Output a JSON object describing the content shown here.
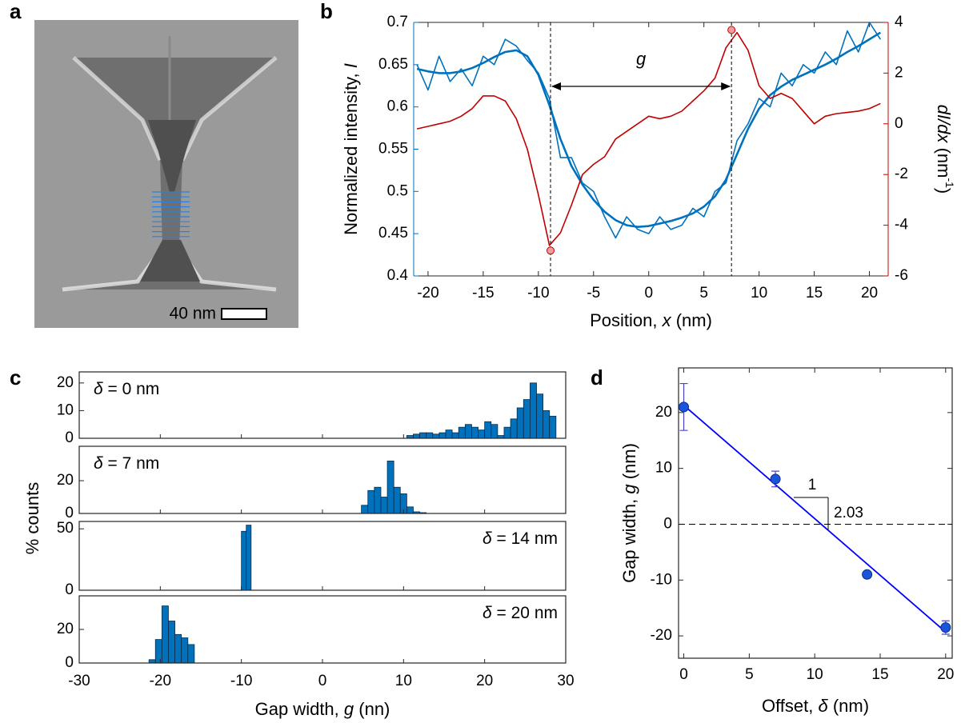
{
  "chart_data": [
    {
      "type": "image",
      "label": "a",
      "scale_bar_label": "40 nm"
    },
    {
      "type": "line",
      "label": "b",
      "x": [
        -21,
        -20,
        -19,
        -18,
        -17,
        -16,
        -15,
        -14,
        -13,
        -12,
        -11,
        -10,
        -9,
        -8,
        -7,
        -6,
        -5,
        -4,
        -3,
        -2,
        -1,
        0,
        1,
        2,
        3,
        4,
        5,
        6,
        7,
        8,
        9,
        10,
        11,
        12,
        13,
        14,
        15,
        16,
        17,
        18,
        19,
        20,
        21
      ],
      "series": [
        {
          "color": "#0072BD",
          "values": [
            0.65,
            0.62,
            0.66,
            0.63,
            0.645,
            0.625,
            0.66,
            0.65,
            0.68,
            0.672,
            0.655,
            0.64,
            0.61,
            0.54,
            0.54,
            0.51,
            0.5,
            0.47,
            0.445,
            0.47,
            0.455,
            0.45,
            0.47,
            0.455,
            0.46,
            0.48,
            0.47,
            0.5,
            0.51,
            0.56,
            0.58,
            0.61,
            0.6,
            0.64,
            0.625,
            0.65,
            0.64,
            0.665,
            0.65,
            0.69,
            0.665,
            0.7,
            0.68
          ]
        },
        {
          "color": "#0072BD",
          "values": [
            0.645,
            0.642,
            0.64,
            0.64,
            0.642,
            0.646,
            0.652,
            0.659,
            0.665,
            0.667,
            0.66,
            0.638,
            0.602,
            0.562,
            0.53,
            0.508,
            0.49,
            0.476,
            0.466,
            0.46,
            0.458,
            0.459,
            0.462,
            0.465,
            0.469,
            0.474,
            0.482,
            0.494,
            0.514,
            0.544,
            0.574,
            0.598,
            0.614,
            0.624,
            0.632,
            0.638,
            0.644,
            0.65,
            0.657,
            0.665,
            0.672,
            0.68,
            0.688
          ]
        },
        {
          "color": "#C00000",
          "axis": "y2",
          "values": [
            -0.2,
            -0.1,
            0.0,
            0.1,
            0.3,
            0.6,
            1.1,
            1.1,
            0.9,
            0.2,
            -1.0,
            -2.8,
            -4.8,
            -4.3,
            -3.2,
            -2.0,
            -1.6,
            -1.3,
            -0.6,
            -0.3,
            0.0,
            0.3,
            0.2,
            0.3,
            0.5,
            0.9,
            1.3,
            1.8,
            3.0,
            3.6,
            2.9,
            1.5,
            1.0,
            1.2,
            1.0,
            0.5,
            0.0,
            0.3,
            0.4,
            0.45,
            0.5,
            0.6,
            0.8
          ]
        }
      ],
      "markers": {
        "x": [
          -8.9,
          7.5
        ],
        "values": [
          -5,
          3.7
        ],
        "axis": "y2",
        "color": "#f49a9a"
      },
      "annotation": "g",
      "xlim": [
        -21.3,
        21.7
      ],
      "xticks": [
        -20,
        -15,
        -10,
        -5,
        0,
        5,
        10,
        15,
        20
      ],
      "ylim": [
        0.4,
        0.7
      ],
      "yticks": [
        0.4,
        0.45,
        0.5,
        0.55,
        0.6,
        0.65,
        0.7
      ],
      "y2lim": [
        -6,
        4
      ],
      "y2ticks": [
        -6,
        -4,
        -2,
        0,
        2,
        4
      ],
      "xlabel": [
        "Position, ",
        "x",
        " (nm)"
      ],
      "ylabel": [
        "Normalized intensity, ",
        "I"
      ],
      "y2label": [
        "dI/dx",
        " (nm",
        "-1",
        ")"
      ]
    },
    {
      "type": "histogram",
      "label": "c",
      "color": "#0072BD",
      "xlim": [
        -30,
        30
      ],
      "xticks": [
        -30,
        -20,
        -10,
        0,
        10,
        20,
        30
      ],
      "xlabel": [
        "Gap width, ",
        "g",
        " (nn)"
      ],
      "ylabel": "% counts",
      "panels": [
        {
          "annotation": [
            "δ",
            " = 0 nm"
          ],
          "annotation_corner": "upper left",
          "ylim": [
            0,
            24
          ],
          "yticks": [
            0,
            10,
            20
          ],
          "bins": [
            10.4,
            11.2,
            12,
            12.8,
            13.6,
            14.4,
            15.2,
            16,
            16.8,
            17.6,
            18.4,
            19.2,
            20,
            20.8,
            21.6,
            22.4,
            23.2,
            24,
            24.8,
            25.6,
            26.4,
            27.2,
            28,
            28.8
          ],
          "values": [
            1,
            1.5,
            2,
            2,
            1.5,
            2,
            3,
            2,
            4,
            5,
            4,
            3,
            6,
            5,
            1,
            4,
            7,
            11,
            14,
            20,
            16,
            10,
            8
          ]
        },
        {
          "annotation": [
            "δ",
            " = 7 nm"
          ],
          "annotation_corner": "upper left",
          "ylim": [
            0,
            41
          ],
          "yticks": [
            0,
            20
          ],
          "bins": [
            4.8,
            5.6,
            6.4,
            7.2,
            8,
            8.8,
            9.6,
            10.4,
            11.2,
            12,
            12.8
          ],
          "values": [
            5,
            14,
            16,
            10,
            32,
            16,
            12,
            4,
            1,
            0.5
          ]
        },
        {
          "annotation": [
            "δ",
            " = 14 nm"
          ],
          "annotation_corner": "upper right",
          "ylim": [
            0,
            56
          ],
          "yticks": [
            0,
            50
          ],
          "bins": [
            -10,
            -9.4,
            -8.8
          ],
          "values": [
            48,
            53
          ]
        },
        {
          "annotation": [
            "δ",
            " = 20 nm"
          ],
          "annotation_corner": "upper right",
          "ylim": [
            0,
            40
          ],
          "yticks": [
            0,
            20
          ],
          "bins": [
            -21.4,
            -20.6,
            -19.8,
            -19,
            -18.2,
            -17.4,
            -16.6,
            -15.8
          ],
          "values": [
            2,
            14,
            34,
            25,
            17,
            15,
            11
          ]
        }
      ]
    },
    {
      "type": "scatter",
      "label": "d",
      "color": "#1a56db",
      "x": [
        0,
        7,
        14,
        20
      ],
      "values": [
        21,
        8.1,
        -9,
        -18.5
      ],
      "errors": [
        4.2,
        1.4,
        0.4,
        1.2
      ],
      "fit": {
        "x": [
          0,
          20
        ],
        "values": [
          21.3,
          -19.3
        ],
        "color": "#0000ff"
      },
      "hline": 0,
      "annotations": [
        "1",
        "2.03"
      ],
      "xlim": [
        -0.4,
        20.5
      ],
      "xticks": [
        0,
        5,
        10,
        15,
        20
      ],
      "ylim": [
        -24,
        28
      ],
      "yticks": [
        -20,
        -10,
        0,
        10,
        20
      ],
      "xlabel": [
        "Offset, ",
        "δ",
        " (nm)"
      ],
      "ylabel": [
        "Gap width, ",
        "g",
        " (nm)"
      ]
    }
  ]
}
